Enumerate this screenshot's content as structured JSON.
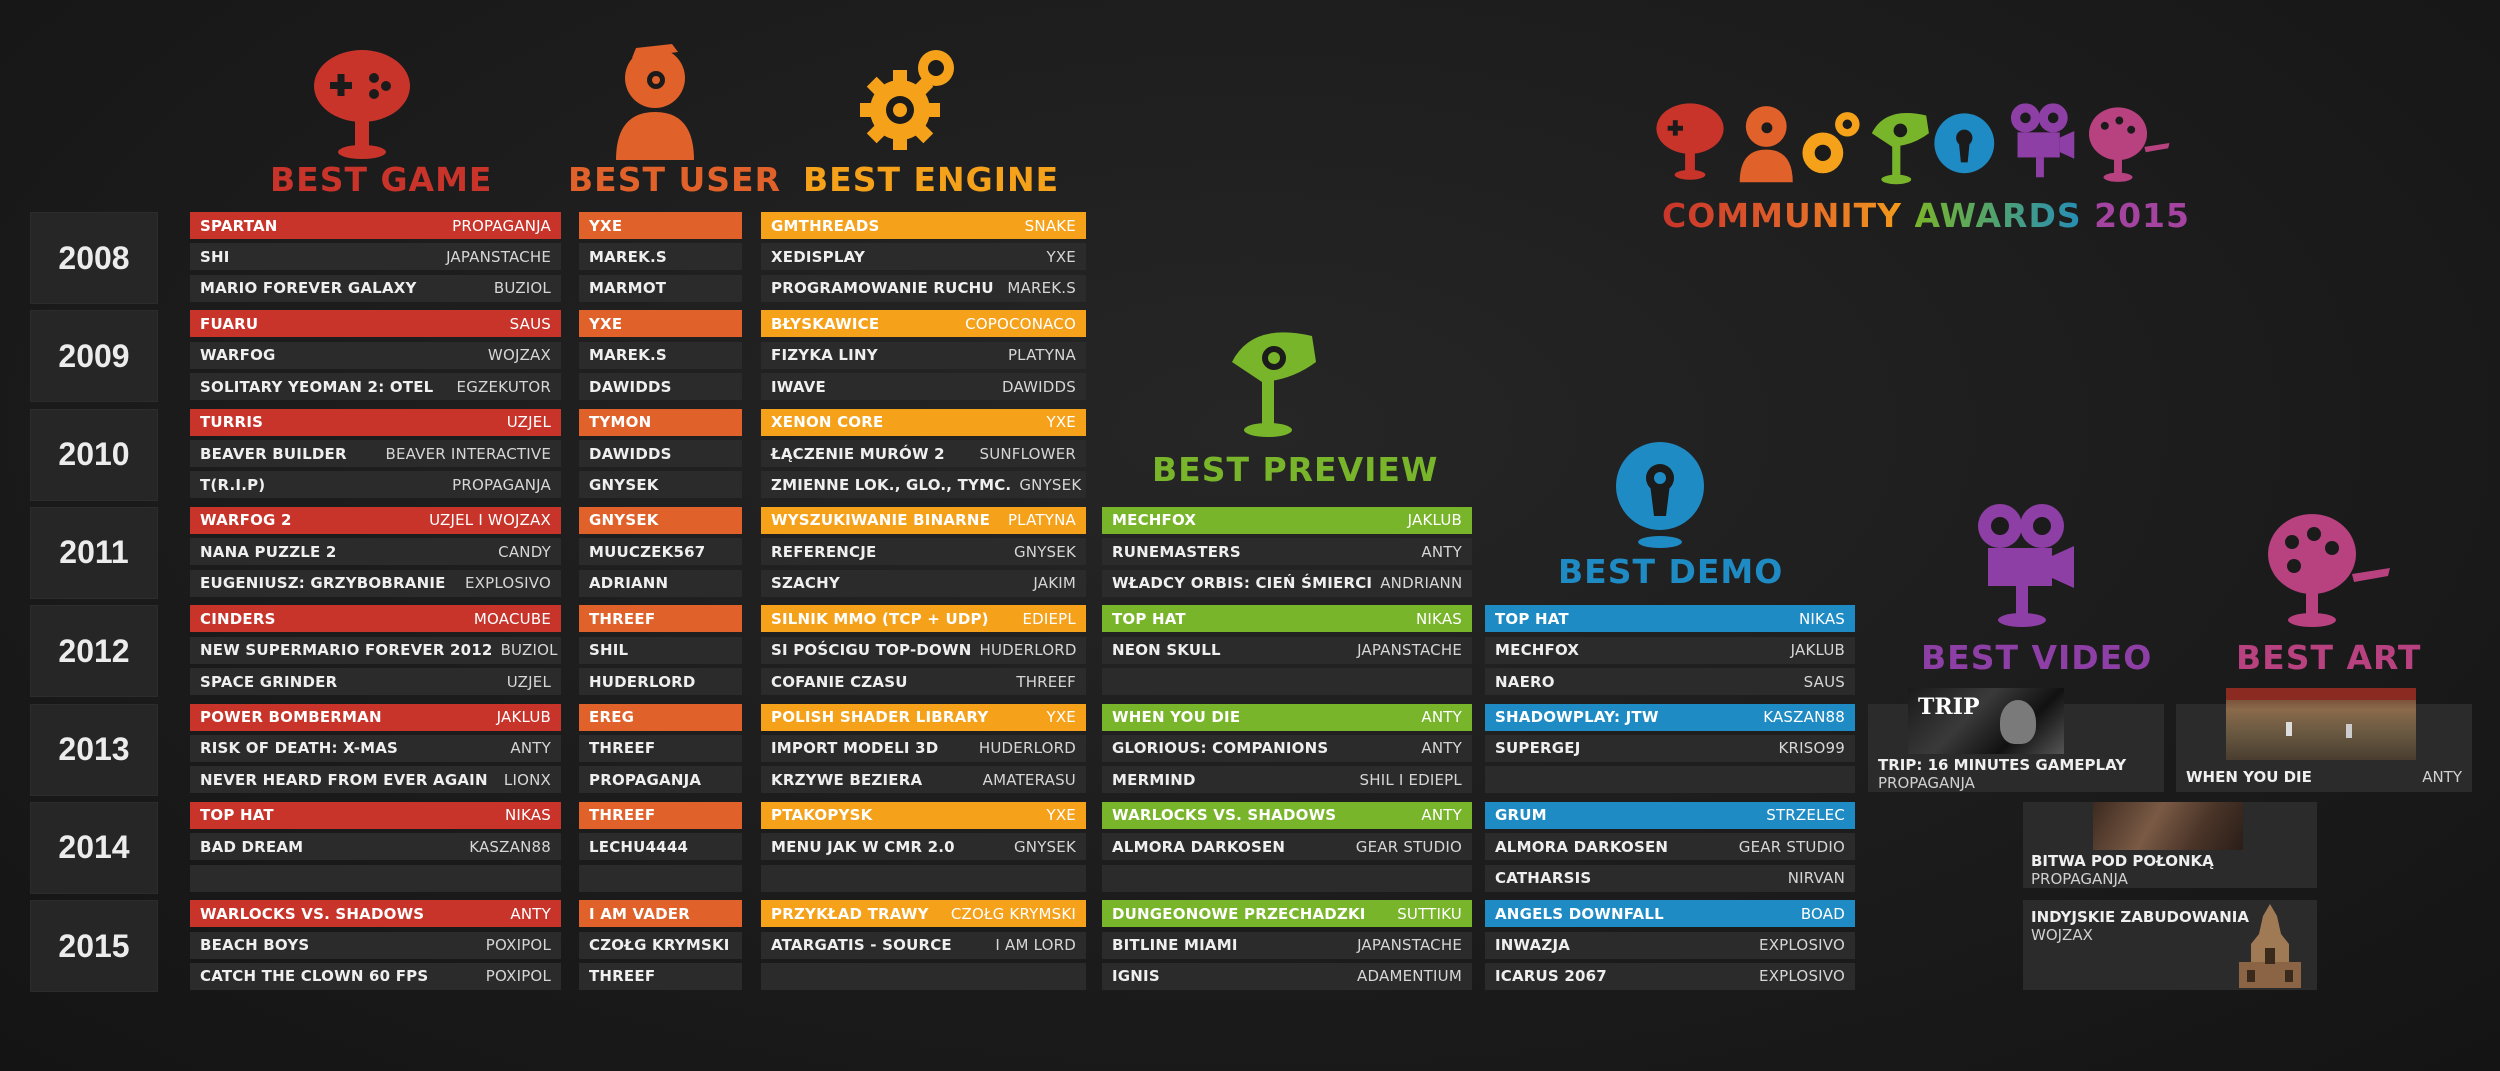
{
  "years": [
    "2008",
    "2009",
    "2010",
    "2011",
    "2012",
    "2013",
    "2014",
    "2015"
  ],
  "colors": {
    "game": "#c8342a",
    "user": "#e0612a",
    "engine": "#f5a11a",
    "preview": "#79b52a",
    "demo": "#1f8bc4",
    "video": "#8e3fa6",
    "art": "#b8417f"
  },
  "headers": {
    "game": "BEST GAME",
    "user": "BEST USER",
    "engine": "BEST ENGINE",
    "preview": "BEST PREVIEW",
    "demo": "BEST DEMO",
    "video": "BEST VIDEO",
    "art": "BEST ART"
  },
  "logo": {
    "title_parts": [
      "COMMUNITY ",
      "AWARDS ",
      "2015"
    ]
  },
  "game": [
    [
      [
        "SPARTAN",
        "PROPAGANJA"
      ],
      [
        "SHI",
        "JAPANSTACHE"
      ],
      [
        "MARIO FOREVER GALAXY",
        "BUZIOL"
      ]
    ],
    [
      [
        "FUARU",
        "SAUS"
      ],
      [
        "WARFOG",
        "WOJZAX"
      ],
      [
        "SOLITARY YEOMAN 2: OTEL",
        "EGZEKUTOR"
      ]
    ],
    [
      [
        "TURRIS",
        "UZJEL"
      ],
      [
        "BEAVER BUILDER",
        "BEAVER INTERACTIVE"
      ],
      [
        "T(R.I.P)",
        "PROPAGANJA"
      ]
    ],
    [
      [
        "WARFOG 2",
        "UZJEL I WOJZAX"
      ],
      [
        "NANA PUZZLE 2",
        "CANDY"
      ],
      [
        "EUGENIUSZ: GRZYBOBRANIE",
        "EXPLOSIVO"
      ]
    ],
    [
      [
        "CINDERS",
        "MOACUBE"
      ],
      [
        "NEW SUPERMARIO FOREVER 2012",
        "BUZIOL"
      ],
      [
        "SPACE GRINDER",
        "UZJEL"
      ]
    ],
    [
      [
        "POWER BOMBERMAN",
        "JAKLUB"
      ],
      [
        "RISK OF DEATH: X-MAS",
        "ANTY"
      ],
      [
        "NEVER HEARD FROM EVER AGAIN",
        "LIONX"
      ]
    ],
    [
      [
        "TOP HAT",
        "NIKAS"
      ],
      [
        "BAD DREAM",
        "KASZAN88"
      ],
      [
        "",
        ""
      ]
    ],
    [
      [
        "WARLOCKS VS. SHADOWS",
        "ANTY"
      ],
      [
        "BEACH BOYS",
        "POXIPOL"
      ],
      [
        "CATCH THE CLOWN 60 FPS",
        "POXIPOL"
      ]
    ]
  ],
  "user": [
    [
      "YXE",
      "MAREK.S",
      "MARMOT"
    ],
    [
      "YXE",
      "MAREK.S",
      "DAWIDDS"
    ],
    [
      "TYMON",
      "DAWIDDS",
      "GNYSEK"
    ],
    [
      "GNYSEK",
      "MUUCZEK567",
      "ADRIANN"
    ],
    [
      "THREEF",
      "SHIL",
      "HUDERLORD"
    ],
    [
      "EREG",
      "THREEF",
      "PROPAGANJA"
    ],
    [
      "THREEF",
      "LECHU4444",
      ""
    ],
    [
      "I AM VADER",
      "CZOŁG KRYMSKI",
      "THREEF"
    ]
  ],
  "engine": [
    [
      [
        "GMTHREADS",
        "SNAKE"
      ],
      [
        "XEDISPLAY",
        "YXE"
      ],
      [
        "PROGRAMOWANIE RUCHU",
        "MAREK.S"
      ]
    ],
    [
      [
        "BŁYSKAWICE",
        "COPOCONACO"
      ],
      [
        "FIZYKA LINY",
        "PLATYNA"
      ],
      [
        "IWAVE",
        "DAWIDDS"
      ]
    ],
    [
      [
        "XENON CORE",
        "YXE"
      ],
      [
        "ŁĄCZENIE MURÓW 2",
        "SUNFLOWER"
      ],
      [
        "ZMIENNE LOK., GLO., TYMC.",
        "GNYSEK"
      ]
    ],
    [
      [
        "WYSZUKIWANIE BINARNE",
        "PLATYNA"
      ],
      [
        "REFERENCJE",
        "GNYSEK"
      ],
      [
        "SZACHY",
        "JAKIM"
      ]
    ],
    [
      [
        "SILNIK MMO (TCP + UDP)",
        "EDIEPL"
      ],
      [
        "SI POŚCIGU TOP-DOWN",
        "HUDERLORD"
      ],
      [
        "COFANIE CZASU",
        "THREEF"
      ]
    ],
    [
      [
        "POLISH SHADER LIBRARY",
        "YXE"
      ],
      [
        "IMPORT MODELI 3D",
        "HUDERLORD"
      ],
      [
        "KRZYWE BEZIERA",
        "AMATERASU"
      ]
    ],
    [
      [
        "PTAKOPYSK",
        "YXE"
      ],
      [
        "MENU JAK W CMR 2.0",
        "GNYSEK"
      ],
      [
        "",
        ""
      ]
    ],
    [
      [
        "PRZYKŁAD TRAWY",
        "CZOŁG KRYMSKI"
      ],
      [
        "ATARGATIS - SOURCE",
        "I AM LORD"
      ],
      [
        "",
        ""
      ]
    ]
  ],
  "preview": [
    [
      [
        "MECHFOX",
        "JAKLUB"
      ],
      [
        "RUNEMASTERS",
        "ANTY"
      ],
      [
        "WŁADCY ORBIS: CIEŃ ŚMIERCI",
        "ANDRIANN"
      ]
    ],
    [
      [
        "TOP HAT",
        "NIKAS"
      ],
      [
        "NEON SKULL",
        "JAPANSTACHE"
      ],
      [
        "",
        ""
      ]
    ],
    [
      [
        "WHEN YOU DIE",
        "ANTY"
      ],
      [
        "GLORIOUS: COMPANIONS",
        "ANTY"
      ],
      [
        "MERMIND",
        "SHIL I EDIEPL"
      ]
    ],
    [
      [
        "WARLOCKS VS. SHADOWS",
        "ANTY"
      ],
      [
        "ALMORA DARKOSEN",
        "GEAR STUDIO"
      ],
      [
        "",
        ""
      ]
    ],
    [
      [
        "DUNGEONOWE PRZECHADZKI",
        "SUTTIKU"
      ],
      [
        "BITLINE MIAMI",
        "JAPANSTACHE"
      ],
      [
        "IGNIS",
        "ADAMENTIUM"
      ]
    ]
  ],
  "demo": [
    [
      [
        "TOP HAT",
        "NIKAS"
      ],
      [
        "MECHFOX",
        "JAKLUB"
      ],
      [
        "NAERO",
        "SAUS"
      ]
    ],
    [
      [
        "SHADOWPLAY: JTW",
        "KASZAN88"
      ],
      [
        "SUPERGEJ",
        "KRISO99"
      ],
      [
        "",
        ""
      ]
    ],
    [
      [
        "GRUM",
        "STRZELEC"
      ],
      [
        "ALMORA DARKOSEN",
        "GEAR STUDIO"
      ],
      [
        "CATHARSIS",
        "NIRVAN"
      ]
    ],
    [
      [
        "ANGELS DOWNFALL",
        "BOAD"
      ],
      [
        "INWAZJA",
        "EXPLOSIVO"
      ],
      [
        "ICARUS 2067",
        "EXPLOSIVO"
      ]
    ]
  ],
  "video": [
    {
      "title": "TRIP: 16 MINUTES GAMEPLAY",
      "author": "PROPAGANJA",
      "thumb_text": "TRIP"
    },
    {
      "title": "BITWA POD POŁONKĄ",
      "author": "PROPAGANJA"
    },
    {
      "title": "INDYJSKIE ZABUDOWANIA",
      "author": "WOJZAX"
    }
  ],
  "art": [
    {
      "title": "WHEN YOU DIE",
      "author": "ANTY"
    }
  ]
}
